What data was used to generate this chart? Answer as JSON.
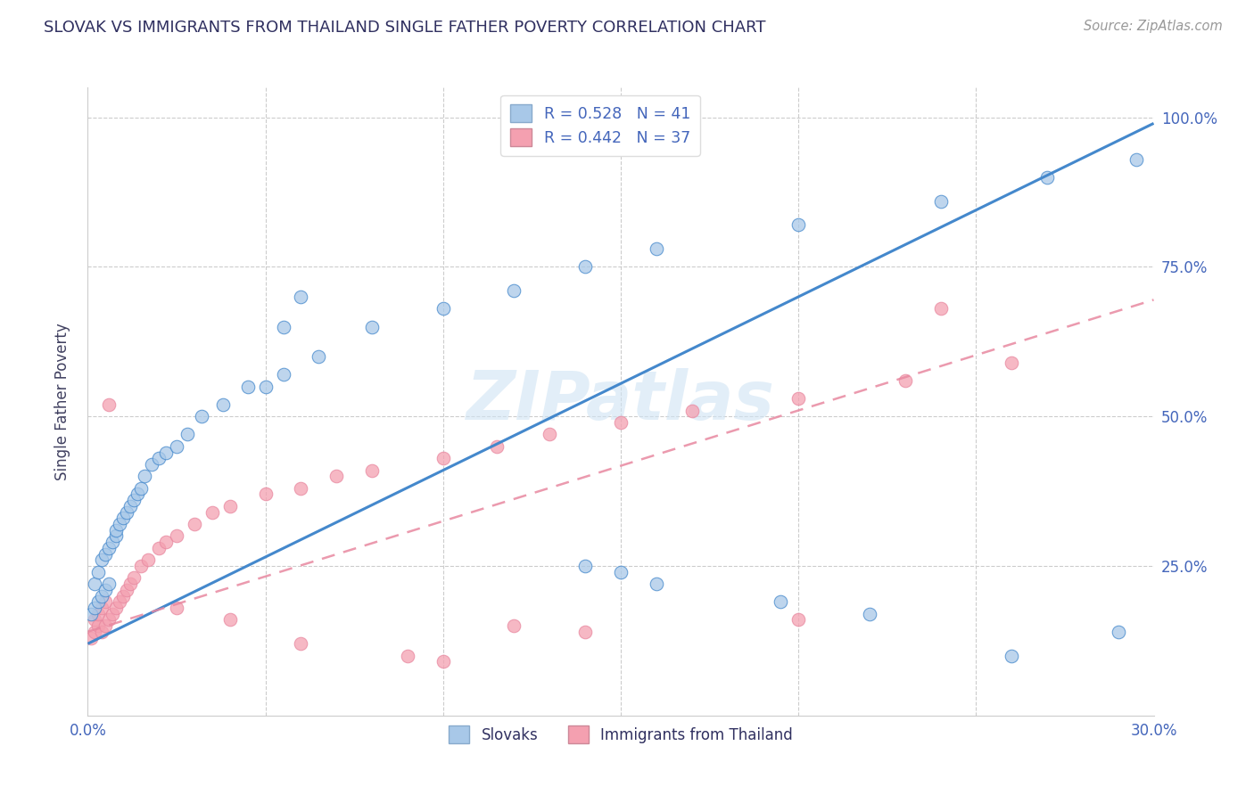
{
  "title": "SLOVAK VS IMMIGRANTS FROM THAILAND SINGLE FATHER POVERTY CORRELATION CHART",
  "source": "Source: ZipAtlas.com",
  "ylabel": "Single Father Poverty",
  "xmin": 0.0,
  "xmax": 0.3,
  "ymin": 0.0,
  "ymax": 1.05,
  "legend_r_blue": "R = 0.528",
  "legend_n_blue": "N = 41",
  "legend_r_pink": "R = 0.442",
  "legend_n_pink": "N = 37",
  "legend_label_blue": "Slovaks",
  "legend_label_pink": "Immigrants from Thailand",
  "blue_color": "#a8c8e8",
  "pink_color": "#f4a0b0",
  "blue_edge_color": "#7aaad0",
  "pink_edge_color": "#e87890",
  "blue_line_color": "#4488cc",
  "pink_line_color": "#e888a0",
  "title_color": "#303060",
  "axis_label_color": "#404060",
  "tick_color": "#4466bb",
  "source_color": "#999999",
  "watermark": "ZIPatlas",
  "watermark_color": "#d0e4f4",
  "blue_scatter_x": [
    0.001,
    0.002,
    0.002,
    0.003,
    0.003,
    0.004,
    0.004,
    0.005,
    0.005,
    0.006,
    0.006,
    0.007,
    0.008,
    0.008,
    0.009,
    0.01,
    0.011,
    0.012,
    0.013,
    0.014,
    0.015,
    0.016,
    0.018,
    0.02,
    0.022,
    0.025,
    0.028,
    0.032,
    0.038,
    0.045,
    0.055,
    0.065,
    0.08,
    0.1,
    0.12,
    0.14,
    0.16,
    0.2,
    0.24,
    0.27,
    0.295
  ],
  "blue_scatter_y": [
    0.17,
    0.18,
    0.22,
    0.19,
    0.24,
    0.2,
    0.26,
    0.21,
    0.27,
    0.22,
    0.28,
    0.29,
    0.3,
    0.31,
    0.32,
    0.33,
    0.34,
    0.35,
    0.36,
    0.37,
    0.38,
    0.4,
    0.42,
    0.43,
    0.44,
    0.45,
    0.47,
    0.5,
    0.52,
    0.55,
    0.57,
    0.6,
    0.65,
    0.68,
    0.71,
    0.75,
    0.78,
    0.82,
    0.86,
    0.9,
    0.93
  ],
  "blue_scatter_y_outliers": [
    0.7,
    0.65,
    0.55,
    0.25,
    0.24,
    0.22,
    0.19,
    0.17,
    0.1,
    0.14
  ],
  "blue_scatter_x_outliers": [
    0.06,
    0.055,
    0.05,
    0.14,
    0.15,
    0.16,
    0.195,
    0.22,
    0.26,
    0.29
  ],
  "pink_scatter_x": [
    0.001,
    0.002,
    0.002,
    0.003,
    0.003,
    0.004,
    0.004,
    0.005,
    0.005,
    0.006,
    0.007,
    0.008,
    0.009,
    0.01,
    0.011,
    0.012,
    0.013,
    0.015,
    0.017,
    0.02,
    0.022,
    0.025,
    0.03,
    0.035,
    0.04,
    0.05,
    0.06,
    0.07,
    0.08,
    0.1,
    0.115,
    0.13,
    0.15,
    0.17,
    0.2,
    0.23,
    0.26
  ],
  "pink_scatter_y": [
    0.13,
    0.14,
    0.16,
    0.15,
    0.17,
    0.14,
    0.18,
    0.15,
    0.19,
    0.16,
    0.17,
    0.18,
    0.19,
    0.2,
    0.21,
    0.22,
    0.23,
    0.25,
    0.26,
    0.28,
    0.29,
    0.3,
    0.32,
    0.34,
    0.35,
    0.37,
    0.38,
    0.4,
    0.41,
    0.43,
    0.45,
    0.47,
    0.49,
    0.51,
    0.53,
    0.56,
    0.59
  ],
  "pink_scatter_y_outliers": [
    0.52,
    0.18,
    0.16,
    0.12,
    0.1,
    0.09,
    0.15,
    0.14,
    0.16,
    0.68
  ],
  "pink_scatter_x_outliers": [
    0.006,
    0.025,
    0.04,
    0.06,
    0.09,
    0.1,
    0.12,
    0.14,
    0.2,
    0.24
  ]
}
